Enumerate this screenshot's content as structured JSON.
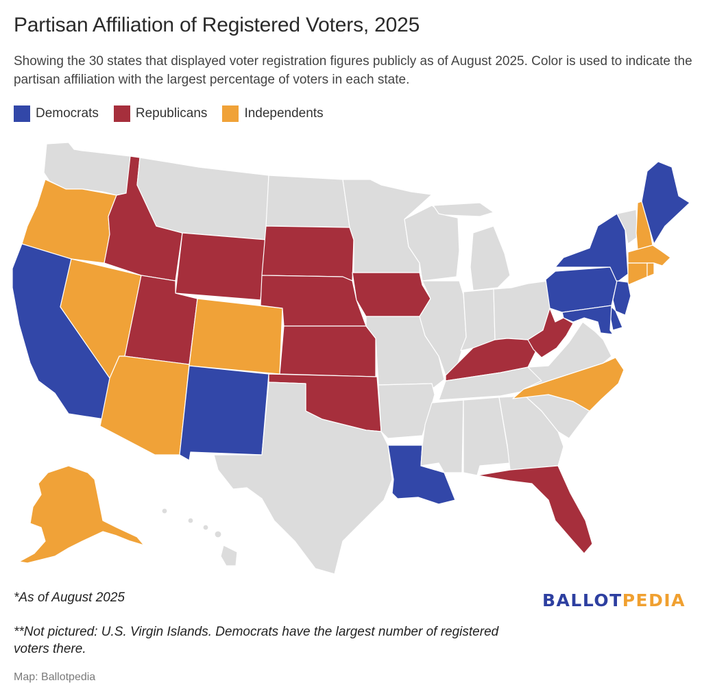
{
  "title": "Partisan Affiliation of Registered Voters, 2025",
  "subtitle": "Showing the 30 states that displayed voter registration figures publicly as of August 2025. Color is used to indicate the partisan affiliation with the largest percentage of voters in each state.",
  "legend": [
    {
      "label": "Democrats",
      "color": "#3247a8"
    },
    {
      "label": "Republicans",
      "color": "#a62f3c"
    },
    {
      "label": "Independents",
      "color": "#f0a238"
    }
  ],
  "colors": {
    "none": "#dcdcdc",
    "Democrats": "#3247a8",
    "Republicans": "#a62f3c",
    "Independents": "#f0a238"
  },
  "states": {
    "WA": "none",
    "OR": "Independents",
    "CA": "Democrats",
    "NV": "Independents",
    "ID": "Republicans",
    "MT": "none",
    "WY": "Republicans",
    "UT": "Republicans",
    "AZ": "Independents",
    "CO": "Independents",
    "NM": "Democrats",
    "ND": "none",
    "SD": "Republicans",
    "NE": "Republicans",
    "KS": "Republicans",
    "OK": "Republicans",
    "TX": "none",
    "MN": "none",
    "IA": "Republicans",
    "MO": "none",
    "AR": "none",
    "LA": "Democrats",
    "WI": "none",
    "IL": "none",
    "MI": "none",
    "IN": "none",
    "OH": "none",
    "KY": "Republicans",
    "TN": "none",
    "MS": "none",
    "AL": "none",
    "GA": "none",
    "FL": "Republicans",
    "SC": "none",
    "NC": "Independents",
    "VA": "none",
    "WV": "Republicans",
    "PA": "Democrats",
    "NY": "Democrats",
    "VT": "none",
    "NH": "Independents",
    "ME": "Democrats",
    "MA": "Independents",
    "CT": "Independents",
    "RI": "Independents",
    "NJ": "Democrats",
    "DE": "Democrats",
    "MD": "Democrats",
    "AK": "Independents",
    "HI": "none"
  },
  "notes": {
    "as_of": "*As of August 2025",
    "not_pictured": "**Not pictured: U.S. Virgin Islands. Democrats have the largest number of registered voters there."
  },
  "credit": "Map: Ballotpedia",
  "brand": {
    "part1": "BALLOT",
    "part2": "PEDIA"
  }
}
